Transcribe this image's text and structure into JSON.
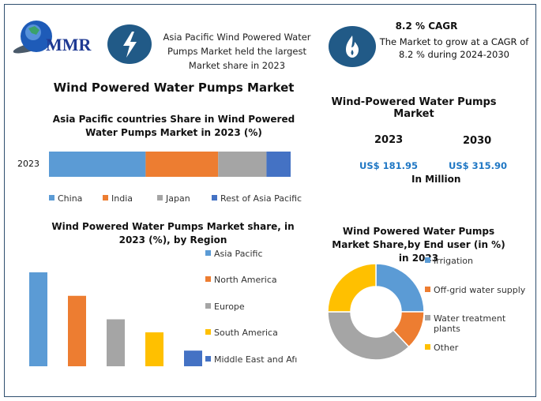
{
  "logo": {
    "text": "MMR"
  },
  "highlight": {
    "icon": "lightning-bolt-icon",
    "text": "Asia Pacific Wind Powered Water Pumps Market held the largest Market share in 2023"
  },
  "cagr": {
    "icon": "flame-icon",
    "title": "8.2 % CAGR",
    "text": "The Market to grow at a CAGR of 8.2 % during 2024-2030"
  },
  "main_title": "Wind Powered Water Pumps Market",
  "market_size": {
    "title": "Wind-Powered Water Pumps Market",
    "year1": "2023",
    "value1": "US$ 181.95",
    "year2": "2030",
    "value2": "US$ 315.90",
    "unit": "In Million",
    "value_color": "#1f77c4"
  },
  "chart_data": [
    {
      "type": "bar",
      "stacked": true,
      "orientation": "horizontal",
      "title": "Asia Pacific countries Share in Wind Powered Water Pumps Market in 2023 (%)",
      "categories": [
        "2023"
      ],
      "series": [
        {
          "name": "China",
          "values": [
            40
          ],
          "color": "#5b9bd5"
        },
        {
          "name": "India",
          "values": [
            30
          ],
          "color": "#ed7d31"
        },
        {
          "name": "Japan",
          "values": [
            20
          ],
          "color": "#a5a5a5"
        },
        {
          "name": "Rest of Asia Pacific",
          "values": [
            10
          ],
          "color": "#4472c4"
        }
      ],
      "legend": "bottom"
    },
    {
      "type": "bar",
      "title": "Wind Powered Water Pumps Market share, in 2023 (%), by Region",
      "categories": [
        "Asia Pacific",
        "North America",
        "Europe",
        "South America",
        "Middle East and Afı"
      ],
      "values": [
        36,
        27,
        18,
        13,
        6
      ],
      "colors": [
        "#5b9bd5",
        "#ed7d31",
        "#a5a5a5",
        "#ffc000",
        "#4472c4"
      ],
      "legend": "right"
    },
    {
      "type": "pie",
      "donut": true,
      "title": "Wind Powered Water Pumps Market Share,by End user (in %) in 2023",
      "categories": [
        "Irrigation",
        "Off-grid water supply",
        "Water treatment plants",
        "Other"
      ],
      "values": [
        25,
        13,
        37,
        25
      ],
      "colors": [
        "#5b9bd5",
        "#ed7d31",
        "#a5a5a5",
        "#ffc000"
      ],
      "legend": "right"
    }
  ]
}
